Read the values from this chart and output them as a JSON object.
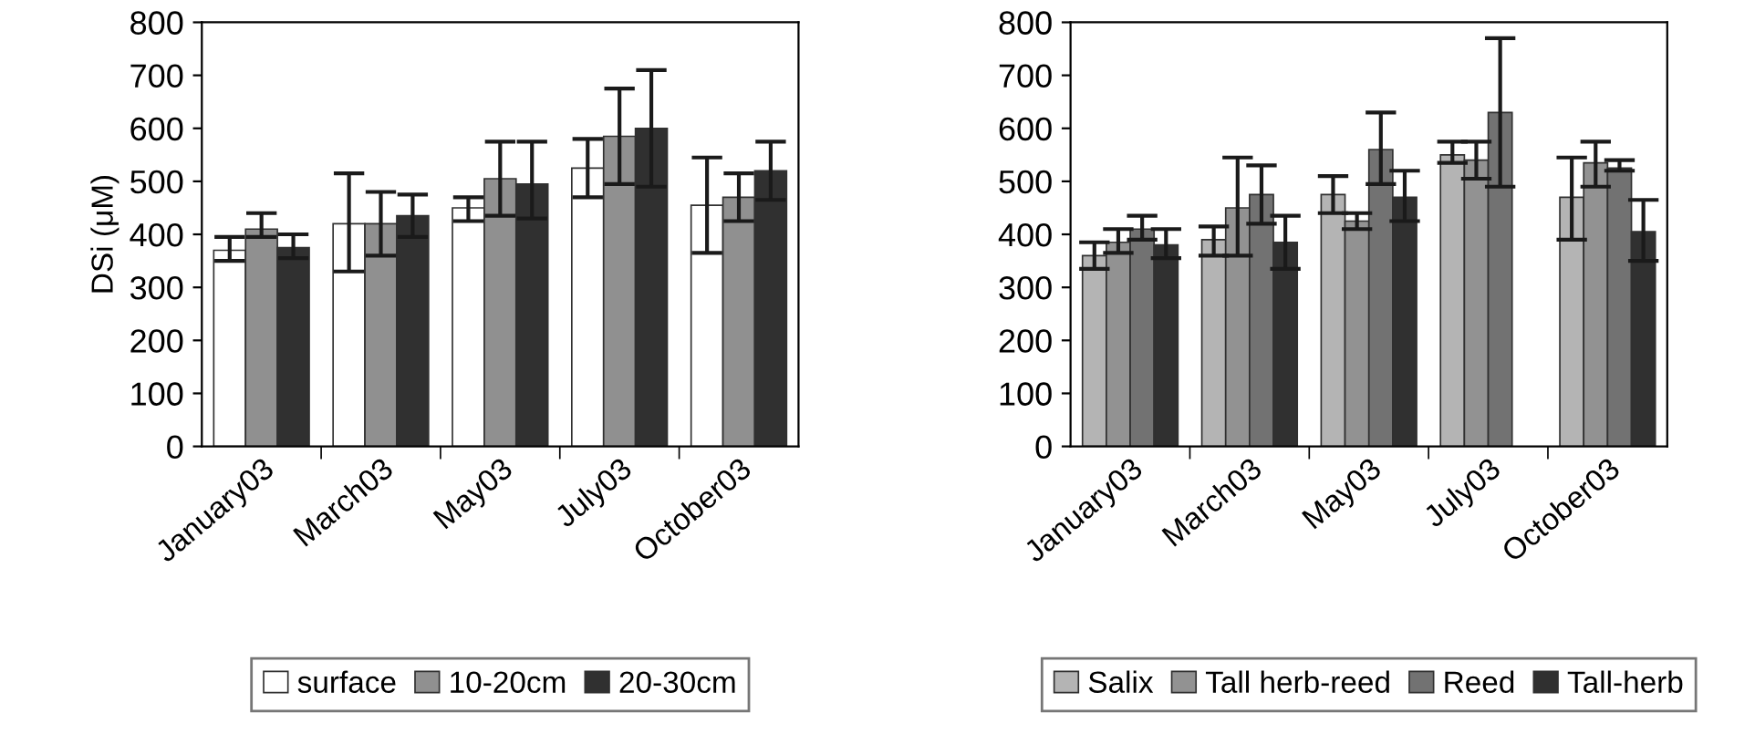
{
  "chart_data": [
    {
      "type": "bar",
      "ylabel": "DSi (μM)",
      "categories": [
        "January03",
        "March03",
        "May03",
        "July03",
        "October03"
      ],
      "ylim": [
        0,
        800
      ],
      "yticks": [
        0,
        100,
        200,
        300,
        400,
        500,
        600,
        700,
        800
      ],
      "grid": false,
      "legend": "bottom",
      "series": [
        {
          "name": "surface",
          "color": "#ffffff",
          "values": [
            370,
            420,
            450,
            525,
            455
          ],
          "errors": [
            [
              350,
              395
            ],
            [
              330,
              515
            ],
            [
              425,
              470
            ],
            [
              470,
              580
            ],
            [
              365,
              545
            ]
          ]
        },
        {
          "name": "10-20cm",
          "color": "#909090",
          "values": [
            410,
            420,
            505,
            585,
            470
          ],
          "errors": [
            [
              395,
              440
            ],
            [
              360,
              480
            ],
            [
              435,
              575
            ],
            [
              495,
              675
            ],
            [
              425,
              515
            ]
          ]
        },
        {
          "name": "20-30cm",
          "color": "#303030",
          "values": [
            375,
            435,
            495,
            600,
            520
          ],
          "errors": [
            [
              355,
              400
            ],
            [
              395,
              475
            ],
            [
              430,
              575
            ],
            [
              490,
              710
            ],
            [
              465,
              575
            ]
          ]
        }
      ]
    },
    {
      "type": "bar",
      "categories": [
        "January03",
        "March03",
        "May03",
        "July03",
        "October03"
      ],
      "ylim": [
        0,
        800
      ],
      "yticks": [
        0,
        100,
        200,
        300,
        400,
        500,
        600,
        700,
        800
      ],
      "grid": false,
      "legend": "bottom",
      "series": [
        {
          "name": "Salix",
          "color": "#b4b4b4",
          "values": [
            360,
            390,
            475,
            550,
            470
          ],
          "errors": [
            [
              335,
              385
            ],
            [
              360,
              415
            ],
            [
              440,
              510
            ],
            [
              535,
              575
            ],
            [
              390,
              545
            ]
          ]
        },
        {
          "name": "Tall herb-reed",
          "color": "#929292",
          "values": [
            385,
            450,
            425,
            540,
            535
          ],
          "errors": [
            [
              365,
              410
            ],
            [
              360,
              545
            ],
            [
              410,
              440
            ],
            [
              505,
              575
            ],
            [
              490,
              575
            ]
          ]
        },
        {
          "name": "Reed",
          "color": "#727272",
          "values": [
            410,
            475,
            560,
            630,
            525
          ],
          "errors": [
            [
              390,
              435
            ],
            [
              420,
              530
            ],
            [
              495,
              630
            ],
            [
              490,
              770
            ],
            [
              520,
              540
            ]
          ]
        },
        {
          "name": "Tall-herb",
          "color": "#303030",
          "values": [
            380,
            385,
            470,
            null,
            405
          ],
          "errors": [
            [
              355,
              410
            ],
            [
              335,
              435
            ],
            [
              425,
              520
            ],
            null,
            [
              350,
              465
            ]
          ]
        }
      ]
    }
  ]
}
